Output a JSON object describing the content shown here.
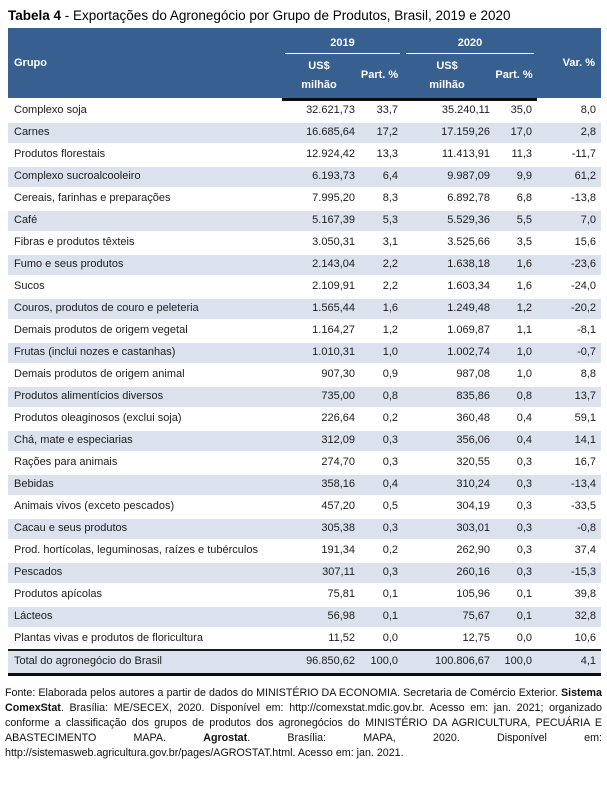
{
  "title": {
    "label": "Tabela 4",
    "rest": " - Exportações do Agronegócio por Grupo de Produtos, Brasil, 2019 e 2020"
  },
  "colors": {
    "header_bg": "#375F90",
    "stripe": "#DBE2EE",
    "rule": "#0d0d0d"
  },
  "table": {
    "header": {
      "group": "Grupo",
      "year_2019": "2019",
      "year_2020": "2020",
      "usd_line1": "US$",
      "usd_line2": "milhão",
      "part": "Part. %",
      "var": "Var. %"
    },
    "rows": [
      {
        "group": "Complexo soja",
        "usd_2019": "32.621,73",
        "part_2019": "33,7",
        "usd_2020": "35.240,11",
        "part_2020": "35,0",
        "var_pct": "8,0"
      },
      {
        "group": "Carnes",
        "usd_2019": "16.685,64",
        "part_2019": "17,2",
        "usd_2020": "17.159,26",
        "part_2020": "17,0",
        "var_pct": "2,8"
      },
      {
        "group": "Produtos florestais",
        "usd_2019": "12.924,42",
        "part_2019": "13,3",
        "usd_2020": "11.413,91",
        "part_2020": "11,3",
        "var_pct": "-11,7"
      },
      {
        "group": "Complexo sucroalcooleiro",
        "usd_2019": "6.193,73",
        "part_2019": "6,4",
        "usd_2020": "9.987,09",
        "part_2020": "9,9",
        "var_pct": "61,2"
      },
      {
        "group": "Cereais, farinhas e preparações",
        "usd_2019": "7.995,20",
        "part_2019": "8,3",
        "usd_2020": "6.892,78",
        "part_2020": "6,8",
        "var_pct": "-13,8"
      },
      {
        "group": "Café",
        "usd_2019": "5.167,39",
        "part_2019": "5,3",
        "usd_2020": "5.529,36",
        "part_2020": "5,5",
        "var_pct": "7,0"
      },
      {
        "group": "Fibras e produtos têxteis",
        "usd_2019": "3.050,31",
        "part_2019": "3,1",
        "usd_2020": "3.525,66",
        "part_2020": "3,5",
        "var_pct": "15,6"
      },
      {
        "group": "Fumo e seus produtos",
        "usd_2019": "2.143,04",
        "part_2019": "2,2",
        "usd_2020": "1.638,18",
        "part_2020": "1,6",
        "var_pct": "-23,6"
      },
      {
        "group": "Sucos",
        "usd_2019": "2.109,91",
        "part_2019": "2,2",
        "usd_2020": "1.603,34",
        "part_2020": "1,6",
        "var_pct": "-24,0"
      },
      {
        "group": "Couros, produtos de couro e peleteria",
        "usd_2019": "1.565,44",
        "part_2019": "1,6",
        "usd_2020": "1.249,48",
        "part_2020": "1,2",
        "var_pct": "-20,2"
      },
      {
        "group": "Demais produtos de origem vegetal",
        "usd_2019": "1.164,27",
        "part_2019": "1,2",
        "usd_2020": "1.069,87",
        "part_2020": "1,1",
        "var_pct": "-8,1"
      },
      {
        "group": "Frutas (inclui nozes e castanhas)",
        "usd_2019": "1.010,31",
        "part_2019": "1,0",
        "usd_2020": "1.002,74",
        "part_2020": "1,0",
        "var_pct": "-0,7"
      },
      {
        "group": "Demais produtos de origem animal",
        "usd_2019": "907,30",
        "part_2019": "0,9",
        "usd_2020": "987,08",
        "part_2020": "1,0",
        "var_pct": "8,8"
      },
      {
        "group": "Produtos alimentícios diversos",
        "usd_2019": "735,00",
        "part_2019": "0,8",
        "usd_2020": "835,86",
        "part_2020": "0,8",
        "var_pct": "13,7"
      },
      {
        "group": "Produtos oleaginosos (exclui soja)",
        "usd_2019": "226,64",
        "part_2019": "0,2",
        "usd_2020": "360,48",
        "part_2020": "0,4",
        "var_pct": "59,1"
      },
      {
        "group": "Chá, mate e especiarias",
        "usd_2019": "312,09",
        "part_2019": "0,3",
        "usd_2020": "356,06",
        "part_2020": "0,4",
        "var_pct": "14,1"
      },
      {
        "group": "Rações para animais",
        "usd_2019": "274,70",
        "part_2019": "0,3",
        "usd_2020": "320,55",
        "part_2020": "0,3",
        "var_pct": "16,7"
      },
      {
        "group": "Bebidas",
        "usd_2019": "358,16",
        "part_2019": "0,4",
        "usd_2020": "310,24",
        "part_2020": "0,3",
        "var_pct": "-13,4"
      },
      {
        "group": "Animais vivos (exceto pescados)",
        "usd_2019": "457,20",
        "part_2019": "0,5",
        "usd_2020": "304,19",
        "part_2020": "0,3",
        "var_pct": "-33,5"
      },
      {
        "group": "Cacau e seus produtos",
        "usd_2019": "305,38",
        "part_2019": "0,3",
        "usd_2020": "303,01",
        "part_2020": "0,3",
        "var_pct": "-0,8"
      },
      {
        "group": "Prod. hortícolas, leguminosas, raízes e tubérculos",
        "usd_2019": "191,34",
        "part_2019": "0,2",
        "usd_2020": "262,90",
        "part_2020": "0,3",
        "var_pct": "37,4"
      },
      {
        "group": "Pescados",
        "usd_2019": "307,11",
        "part_2019": "0,3",
        "usd_2020": "260,16",
        "part_2020": "0,3",
        "var_pct": "-15,3"
      },
      {
        "group": "Produtos apícolas",
        "usd_2019": "75,81",
        "part_2019": "0,1",
        "usd_2020": "105,96",
        "part_2020": "0,1",
        "var_pct": "39,8"
      },
      {
        "group": "Lácteos",
        "usd_2019": "56,98",
        "part_2019": "0,1",
        "usd_2020": "75,67",
        "part_2020": "0,1",
        "var_pct": "32,8"
      },
      {
        "group": "Plantas vivas e produtos de floricultura",
        "usd_2019": "11,52",
        "part_2019": "0,0",
        "usd_2020": "12,75",
        "part_2020": "0,0",
        "var_pct": "10,6"
      }
    ],
    "total": {
      "group": "Total do agronegócio do Brasil",
      "usd_2019": "96.850,62",
      "part_2019": "100,0",
      "usd_2020": "100.806,67",
      "part_2020": "100,0",
      "var_pct": "4,1"
    }
  },
  "footnote": {
    "segments": [
      {
        "text": "Fonte: Elaborada pelos autores a partir de dados do MINISTÉRIO DA ECONOMIA. Secretaria de Comércio Exterior. ",
        "bold": false
      },
      {
        "text": "Sistema ComexStat",
        "bold": true
      },
      {
        "text": ". Brasília: ME/SECEX, 2020. Disponível em: http://comexstat.mdic.gov.br. Acesso em: jan. 2021; organizado conforme a classificação dos grupos de produtos dos agronegócios do MINISTÉRIO DA AGRICULTURA, PECUÁRIA E ABASTECIMENTO MAPA. ",
        "bold": false
      },
      {
        "text": "Agrostat",
        "bold": true
      },
      {
        "text": ". Brasília: MAPA, 2020. Disponível em: http://sistemasweb.agricultura.gov.br/pages/AGROSTAT.html. Acesso em: jan. 2021.",
        "bold": false
      }
    ]
  }
}
